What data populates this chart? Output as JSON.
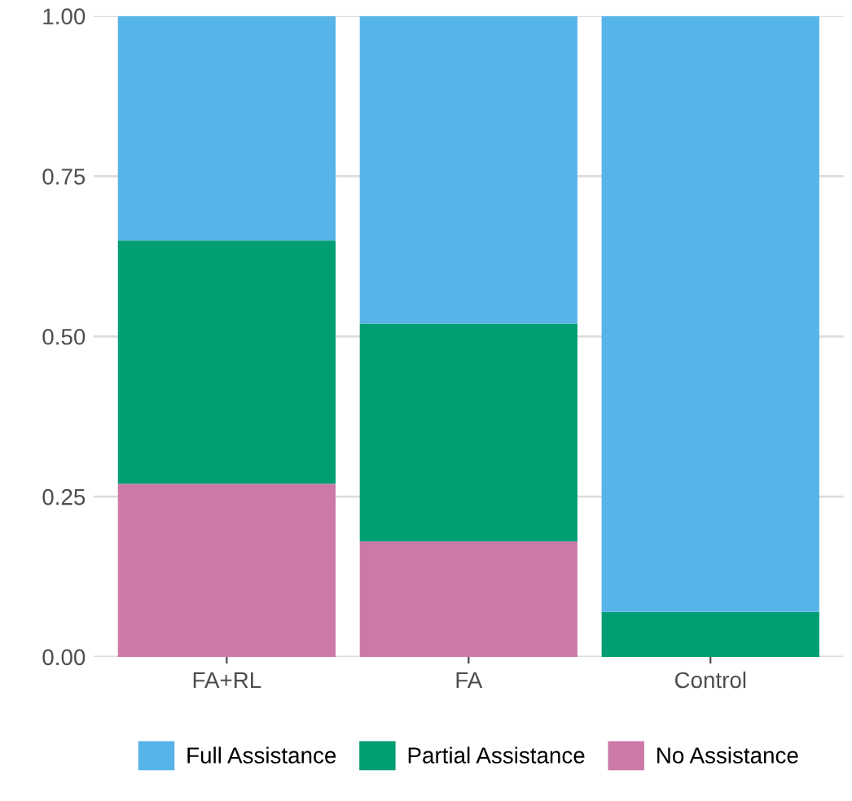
{
  "chart_data": {
    "type": "bar",
    "stacked": true,
    "categories": [
      "FA+RL",
      "FA",
      "Control"
    ],
    "series": [
      {
        "name": "No Assistance",
        "color": "#cc79a7",
        "values": [
          0.27,
          0.18,
          0
        ]
      },
      {
        "name": "Partial Assistance",
        "color": "#009e73",
        "values": [
          0.38,
          0.34,
          0.07
        ]
      },
      {
        "name": "Full Assistance",
        "color": "#56b4e9",
        "values": [
          0.35,
          0.48,
          0.93
        ]
      }
    ],
    "ylim": [
      0,
      1
    ],
    "yticks": [
      {
        "value": 0,
        "label": "0.00"
      },
      {
        "value": 0.25,
        "label": "0.25"
      },
      {
        "value": 0.5,
        "label": "0.50"
      },
      {
        "value": 0.75,
        "label": "0.75"
      },
      {
        "value": 1,
        "label": "1.00"
      }
    ],
    "grid": "y",
    "legend": "bottom"
  }
}
